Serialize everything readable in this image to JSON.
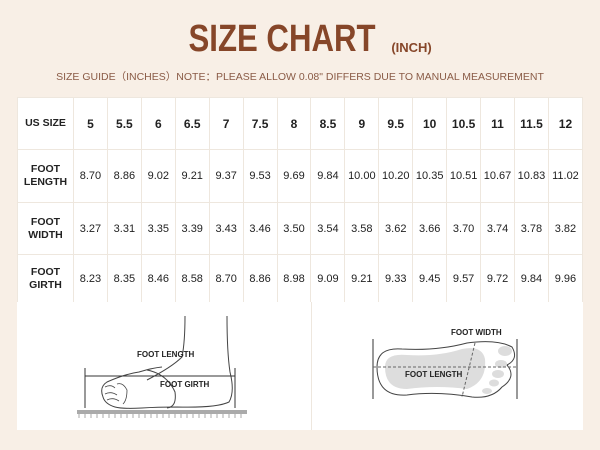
{
  "header": {
    "title": "SIZE CHART",
    "unit": "(INCH)",
    "subtitle": "SIZE GUIDE（INCHES）NOTE：PLEASE ALLOW 0.08\" DIFFERS DUE TO MANUAL MEASUREMENT",
    "title_color": "#864629"
  },
  "table": {
    "header_label": "US SIZE",
    "sizes": [
      "5",
      "5.5",
      "6",
      "6.5",
      "7",
      "7.5",
      "8",
      "8.5",
      "9",
      "9.5",
      "10",
      "10.5",
      "11",
      "11.5",
      "12"
    ],
    "rows": [
      {
        "label_1": "FOOT",
        "label_2": "LENGTH",
        "values": [
          "8.70",
          "8.86",
          "9.02",
          "9.21",
          "9.37",
          "9.53",
          "9.69",
          "9.84",
          "10.00",
          "10.20",
          "10.35",
          "10.51",
          "10.67",
          "10.83",
          "11.02"
        ]
      },
      {
        "label_1": "FOOT",
        "label_2": "WIDTH",
        "values": [
          "3.27",
          "3.31",
          "3.35",
          "3.39",
          "3.43",
          "3.46",
          "3.50",
          "3.54",
          "3.58",
          "3.62",
          "3.66",
          "3.70",
          "3.74",
          "3.78",
          "3.82"
        ]
      },
      {
        "label_1": "FOOT",
        "label_2": "GIRTH",
        "values": [
          "8.23",
          "8.35",
          "8.46",
          "8.58",
          "8.70",
          "8.86",
          "8.98",
          "9.09",
          "9.21",
          "9.33",
          "9.45",
          "9.57",
          "9.72",
          "9.84",
          "9.96"
        ]
      }
    ]
  },
  "diagrams": {
    "side": {
      "length_label": "FOOT LENGTH",
      "girth_label": "FOOT GIRTH",
      "icon": "foot-side-view-icon"
    },
    "top": {
      "width_label": "FOOT WIDTH",
      "length_label": "FOOT LENGTH",
      "icon": "foot-top-view-icon"
    }
  }
}
